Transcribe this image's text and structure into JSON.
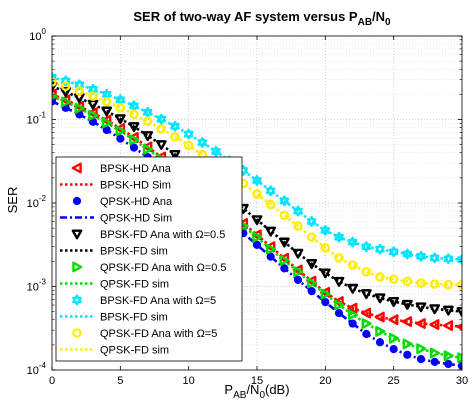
{
  "chart_data": {
    "type": "line",
    "title": "SER of two-way AF system versus P_AB/N_0",
    "title_parts": {
      "main": "SER of two-way AF system versus P",
      "sub1": "AB",
      "mid": "/N",
      "sub2": "0"
    },
    "xlabel": "P_AB/N_0(dB)",
    "xlabel_parts": {
      "main": "P",
      "sub1": "AB",
      "mid": "/N",
      "sub2": "0",
      "tail": "(dB)"
    },
    "ylabel": "SER",
    "y_scale": "log",
    "grid": true,
    "legend_position": "top-left",
    "xlim": [
      0,
      30
    ],
    "ylim": [
      0.0001,
      1
    ],
    "x_ticks": [
      0,
      5,
      10,
      15,
      20,
      25,
      30
    ],
    "x_tick_labels": [
      "0",
      "5",
      "10",
      "15",
      "20",
      "25",
      "30"
    ],
    "y_ticks": [
      0.0001,
      0.001,
      0.01,
      0.1,
      1
    ],
    "y_tick_labels": [
      {
        "base": "10",
        "exp": "-4"
      },
      {
        "base": "10",
        "exp": "-3"
      },
      {
        "base": "10",
        "exp": "-2"
      },
      {
        "base": "10",
        "exp": "-1"
      },
      {
        "base": "10",
        "exp": "0"
      }
    ],
    "x": [
      0,
      1,
      2,
      3,
      4,
      5,
      6,
      7,
      8,
      9,
      10,
      11,
      12,
      13,
      14,
      15,
      16,
      17,
      18,
      19,
      20,
      21,
      22,
      23,
      24,
      25,
      26,
      27,
      28,
      29,
      30
    ],
    "series": [
      {
        "name": "BPSK-HD Ana",
        "color": "#ff0000",
        "marker": "triangle-left",
        "line": "none",
        "values": [
          0.2,
          0.172,
          0.144,
          0.12,
          0.098,
          0.078,
          0.061,
          0.047,
          0.0356,
          0.0266,
          0.0198,
          0.0146,
          0.0108,
          0.0078,
          0.0057,
          0.00415,
          0.003,
          0.00218,
          0.00158,
          0.00116,
          0.00085,
          0.00066,
          0.00055,
          0.00048,
          0.00043,
          0.0004,
          0.00038,
          0.00036,
          0.00035,
          0.00034,
          0.00033
        ]
      },
      {
        "name": "BPSK-HD Sim",
        "color": "#ff0000",
        "marker": "none",
        "line": "dotted",
        "values": [
          0.2,
          0.172,
          0.144,
          0.12,
          0.098,
          0.078,
          0.061,
          0.047,
          0.0356,
          0.0266,
          0.0198,
          0.0146,
          0.0108,
          0.0078,
          0.0057,
          0.00415,
          0.003,
          0.00218,
          0.00158,
          0.00116,
          0.00085,
          0.00066,
          0.00055,
          0.00048,
          0.00043,
          0.0004,
          0.00038,
          0.00036,
          0.00035,
          0.00034,
          0.00033
        ]
      },
      {
        "name": "QPSK-HD Ana",
        "color": "#0000ff",
        "marker": "circle",
        "line": "none",
        "values": [
          0.165,
          0.138,
          0.115,
          0.094,
          0.075,
          0.059,
          0.046,
          0.0355,
          0.0269,
          0.0202,
          0.0151,
          0.0111,
          0.0082,
          0.006,
          0.00435,
          0.00315,
          0.00228,
          0.00165,
          0.0012,
          0.00088,
          0.00065,
          0.00048,
          0.00036,
          0.00027,
          0.000215,
          0.000178,
          0.000152,
          0.000135,
          0.000125,
          0.000118,
          0.000112
        ]
      },
      {
        "name": "QPSK-HD Sim",
        "color": "#0000ff",
        "marker": "none",
        "line": "dashdot",
        "values": [
          0.165,
          0.138,
          0.115,
          0.094,
          0.075,
          0.059,
          0.046,
          0.0355,
          0.0269,
          0.0202,
          0.0151,
          0.0111,
          0.0082,
          0.006,
          0.00435,
          0.00315,
          0.00228,
          0.00165,
          0.0012,
          0.00088,
          0.00065,
          0.00048,
          0.00036,
          0.00027,
          0.000215,
          0.000178,
          0.000152,
          0.000135,
          0.000125,
          0.000118,
          0.000112
        ]
      },
      {
        "name": "BPSK-FD Ana with Ω=0.5",
        "color": "#000000",
        "marker": "triangle-down",
        "line": "none",
        "values": [
          0.25,
          0.215,
          0.182,
          0.152,
          0.126,
          0.102,
          0.082,
          0.064,
          0.05,
          0.038,
          0.029,
          0.0215,
          0.016,
          0.0117,
          0.0086,
          0.0063,
          0.0046,
          0.0034,
          0.0025,
          0.00188,
          0.00145,
          0.00115,
          0.00095,
          0.00082,
          0.00073,
          0.00066,
          0.00061,
          0.00057,
          0.00054,
          0.00052,
          0.0005
        ]
      },
      {
        "name": "BPSK-FD sim",
        "color": "#000000",
        "marker": "none",
        "line": "dotted",
        "values": [
          0.25,
          0.215,
          0.182,
          0.152,
          0.126,
          0.102,
          0.082,
          0.064,
          0.05,
          0.038,
          0.029,
          0.0215,
          0.016,
          0.0117,
          0.0086,
          0.0063,
          0.0046,
          0.0034,
          0.0025,
          0.00188,
          0.00145,
          0.00115,
          0.00095,
          0.00082,
          0.00073,
          0.00066,
          0.00061,
          0.00057,
          0.00054,
          0.00052,
          0.0005
        ]
      },
      {
        "name": "QPSK-FD Ana with Ω=0.5",
        "color": "#00dd00",
        "marker": "triangle-right",
        "line": "none",
        "values": [
          0.19,
          0.162,
          0.136,
          0.112,
          0.091,
          0.073,
          0.057,
          0.044,
          0.0335,
          0.025,
          0.0186,
          0.0137,
          0.01,
          0.0073,
          0.0053,
          0.0039,
          0.0028,
          0.00205,
          0.0015,
          0.0011,
          0.00081,
          0.0006,
          0.00046,
          0.00036,
          0.00029,
          0.00024,
          0.000205,
          0.00018,
          0.00016,
          0.000148,
          0.00014
        ]
      },
      {
        "name": "QPSK-FD sim",
        "color": "#00dd00",
        "marker": "none",
        "line": "dotted",
        "values": [
          0.19,
          0.162,
          0.136,
          0.112,
          0.091,
          0.073,
          0.057,
          0.044,
          0.0335,
          0.025,
          0.0186,
          0.0137,
          0.01,
          0.0073,
          0.0053,
          0.0039,
          0.0028,
          0.00205,
          0.0015,
          0.0011,
          0.00081,
          0.0006,
          0.00046,
          0.00036,
          0.00029,
          0.00024,
          0.000205,
          0.00018,
          0.00016,
          0.000148,
          0.00014
        ]
      },
      {
        "name": "BPSK-FD Ana with Ω=5",
        "color": "#00e5ff",
        "marker": "hexagram",
        "line": "none",
        "values": [
          0.32,
          0.29,
          0.26,
          0.23,
          0.2,
          0.172,
          0.146,
          0.122,
          0.101,
          0.083,
          0.067,
          0.053,
          0.0415,
          0.032,
          0.0245,
          0.0186,
          0.014,
          0.0106,
          0.008,
          0.006,
          0.0047,
          0.0039,
          0.0034,
          0.003,
          0.0028,
          0.0026,
          0.00245,
          0.0023,
          0.0022,
          0.00215,
          0.0021
        ]
      },
      {
        "name": "BPSK-FD sim",
        "color": "#00e5ff",
        "marker": "none",
        "line": "dotted",
        "values": [
          0.32,
          0.29,
          0.26,
          0.23,
          0.2,
          0.172,
          0.146,
          0.122,
          0.101,
          0.083,
          0.067,
          0.053,
          0.0415,
          0.032,
          0.0245,
          0.0186,
          0.014,
          0.0106,
          0.008,
          0.006,
          0.0047,
          0.0039,
          0.0034,
          0.003,
          0.0028,
          0.0026,
          0.00245,
          0.0023,
          0.0022,
          0.00215,
          0.0021
        ]
      },
      {
        "name": "QPSK-FD Ana with Ω=5",
        "color": "#ffee00",
        "marker": "circle-open",
        "line": "none",
        "values": [
          0.28,
          0.25,
          0.22,
          0.19,
          0.163,
          0.138,
          0.115,
          0.095,
          0.077,
          0.062,
          0.049,
          0.038,
          0.0295,
          0.0225,
          0.0171,
          0.0128,
          0.0096,
          0.0071,
          0.0053,
          0.0039,
          0.0029,
          0.0022,
          0.0018,
          0.0015,
          0.0013,
          0.00122,
          0.00115,
          0.0011,
          0.00107,
          0.00105,
          0.00105
        ]
      },
      {
        "name": "QPSK-FD sim",
        "color": "#ffee00",
        "marker": "none",
        "line": "dotted",
        "values": [
          0.28,
          0.25,
          0.22,
          0.19,
          0.163,
          0.138,
          0.115,
          0.095,
          0.077,
          0.062,
          0.049,
          0.038,
          0.0295,
          0.0225,
          0.0171,
          0.0128,
          0.0096,
          0.0071,
          0.0053,
          0.0039,
          0.0029,
          0.0022,
          0.0018,
          0.0015,
          0.0013,
          0.00122,
          0.00115,
          0.0011,
          0.00107,
          0.00105,
          0.00105
        ]
      }
    ]
  }
}
